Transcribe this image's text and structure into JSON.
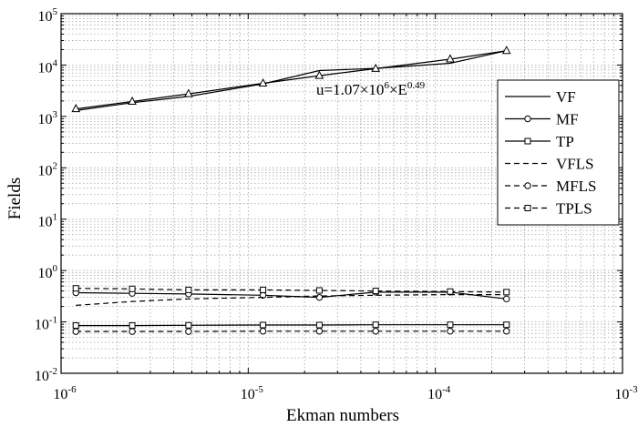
{
  "chart_data": {
    "type": "line",
    "title": "",
    "xlabel": "Ekman numbers",
    "ylabel": "Fields",
    "xscale": "log",
    "yscale": "log",
    "xlim": [
      1e-06,
      0.001
    ],
    "ylim": [
      0.01,
      100000
    ],
    "grid": true,
    "legend_position": "right",
    "x_ticks": [
      {
        "value": 1e-06,
        "base": "10",
        "exp": "-6"
      },
      {
        "value": 1e-05,
        "base": "10",
        "exp": "-5"
      },
      {
        "value": 0.0001,
        "base": "10",
        "exp": "-4"
      },
      {
        "value": 0.001,
        "base": "10",
        "exp": "-3"
      }
    ],
    "y_ticks": [
      {
        "value": 0.01,
        "base": "10",
        "exp": "-2"
      },
      {
        "value": 0.1,
        "base": "10",
        "exp": "-1"
      },
      {
        "value": 1,
        "base": "10",
        "exp": "0"
      },
      {
        "value": 10,
        "base": "10",
        "exp": "1"
      },
      {
        "value": 100,
        "base": "10",
        "exp": "2"
      },
      {
        "value": 1000,
        "base": "10",
        "exp": "3"
      },
      {
        "value": 10000,
        "base": "10",
        "exp": "4"
      },
      {
        "value": 100000,
        "base": "10",
        "exp": "5"
      }
    ],
    "x": [
      1.2e-06,
      2.4e-06,
      4.8e-06,
      1.2e-05,
      2.4e-05,
      4.8e-05,
      0.00012,
      0.00024
    ],
    "series": [
      {
        "name": "VF",
        "dash": "solid",
        "marker": "none",
        "values": [
          1300,
          1850,
          2450,
          4300,
          7800,
          8600,
          10800,
          19000
        ]
      },
      {
        "name": "MF",
        "dash": "solid",
        "marker": "circle",
        "values": [
          0.37,
          0.36,
          0.35,
          0.33,
          0.3,
          0.38,
          0.38,
          0.28
        ]
      },
      {
        "name": "TP",
        "dash": "solid",
        "marker": "square",
        "values": [
          0.085,
          0.085,
          0.086,
          0.087,
          0.087,
          0.088,
          0.088,
          0.088
        ]
      },
      {
        "name": "VFLS",
        "dash": "dashed",
        "marker": "none",
        "values": [
          0.21,
          0.25,
          0.28,
          0.3,
          0.32,
          0.33,
          0.34,
          0.34
        ]
      },
      {
        "name": "MFLS",
        "dash": "dashed",
        "marker": "circle",
        "values": [
          0.065,
          0.065,
          0.065,
          0.066,
          0.066,
          0.066,
          0.066,
          0.066
        ]
      },
      {
        "name": "TPLS",
        "dash": "dashed",
        "marker": "square",
        "values": [
          0.45,
          0.44,
          0.42,
          0.42,
          0.41,
          0.4,
          0.39,
          0.38
        ]
      },
      {
        "name": "",
        "dash": "solid",
        "marker": "triangle",
        "values": [
          1400,
          1950,
          2750,
          4400,
          6200,
          8500,
          13000,
          19000
        ]
      }
    ],
    "annotation": {
      "prefix": "u=1.07×10",
      "exp1": "6",
      "mid": "×E",
      "exp2": "0.49"
    }
  }
}
